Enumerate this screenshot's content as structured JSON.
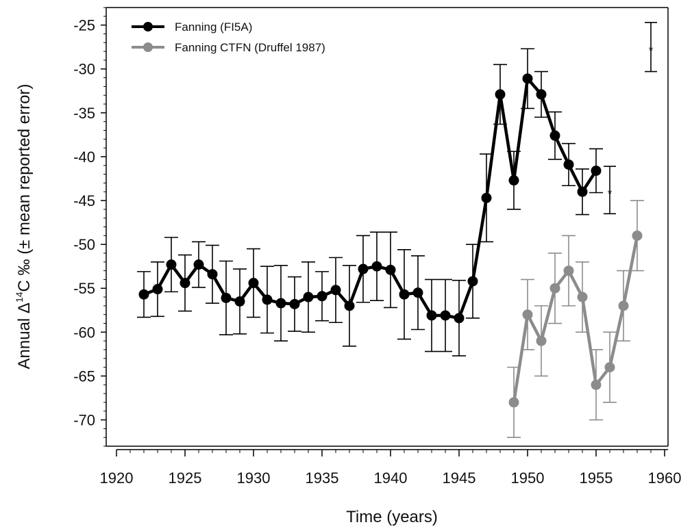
{
  "chart_data": {
    "type": "line",
    "xlabel": "Time (years)",
    "ylabel_prefix": "Annual Δ",
    "ylabel_sup": "14",
    "ylabel_suffix": "C ‰ (± mean reported error)",
    "xlim": [
      1919,
      1960
    ],
    "ylim": [
      -73,
      -23
    ],
    "xticks": [
      "1920",
      "1925",
      "1930",
      "1935",
      "1940",
      "1945",
      "1950",
      "1955",
      "1960"
    ],
    "yticks": [
      "-25",
      "-30",
      "-35",
      "-40",
      "-45",
      "-50",
      "-55",
      "-60",
      "-65",
      "-70"
    ],
    "legend_position": "top-left",
    "series": [
      {
        "name": "Fanning (FI5A)",
        "color": "#000000",
        "x": [
          1922,
          1923,
          1924,
          1925,
          1926,
          1927,
          1928,
          1929,
          1930,
          1931,
          1932,
          1933,
          1934,
          1935,
          1936,
          1937,
          1938,
          1939,
          1940,
          1941,
          1942,
          1943,
          1944,
          1945,
          1946,
          1947,
          1948,
          1949,
          1950,
          1951,
          1952,
          1953,
          1954,
          1955
        ],
        "y": [
          -55.7,
          -55.1,
          -52.3,
          -54.4,
          -52.3,
          -53.4,
          -56.1,
          -56.5,
          -54.4,
          -56.3,
          -56.7,
          -56.8,
          -56.0,
          -55.9,
          -55.2,
          -57.0,
          -52.8,
          -52.5,
          -52.9,
          -55.7,
          -55.5,
          -58.1,
          -58.1,
          -58.4,
          -54.2,
          -44.7,
          -32.9,
          -42.7,
          -31.1,
          -32.9,
          -37.6,
          -40.9,
          -44.0,
          -41.6
        ],
        "err": [
          2.6,
          3.1,
          3.1,
          3.2,
          2.6,
          3.3,
          4.2,
          3.7,
          3.9,
          3.8,
          4.3,
          3.1,
          4.0,
          2.8,
          3.7,
          4.6,
          3.8,
          3.9,
          4.3,
          5.1,
          4.2,
          4.1,
          4.1,
          4.3,
          4.2,
          5.0,
          3.4,
          3.3,
          3.4,
          2.6,
          2.7,
          2.4,
          2.6,
          2.5
        ]
      },
      {
        "name": "Fanning CTFN (Druffel 1987)",
        "color": "#8c8c8c",
        "x": [
          1949,
          1950,
          1951,
          1952,
          1953,
          1954,
          1955,
          1956,
          1957,
          1958
        ],
        "y": [
          -68,
          -58,
          -61,
          -55,
          -53,
          -56,
          -66,
          -64,
          -57,
          -49
        ],
        "err": [
          4,
          4,
          4,
          4,
          4,
          4,
          4,
          4,
          4,
          4
        ]
      }
    ],
    "annotations": [
      {
        "x": 1956,
        "y": -43.8,
        "err": 2.7,
        "label": "*"
      },
      {
        "x": 1959,
        "y": -27.5,
        "err": 2.8,
        "label": "*"
      }
    ]
  }
}
